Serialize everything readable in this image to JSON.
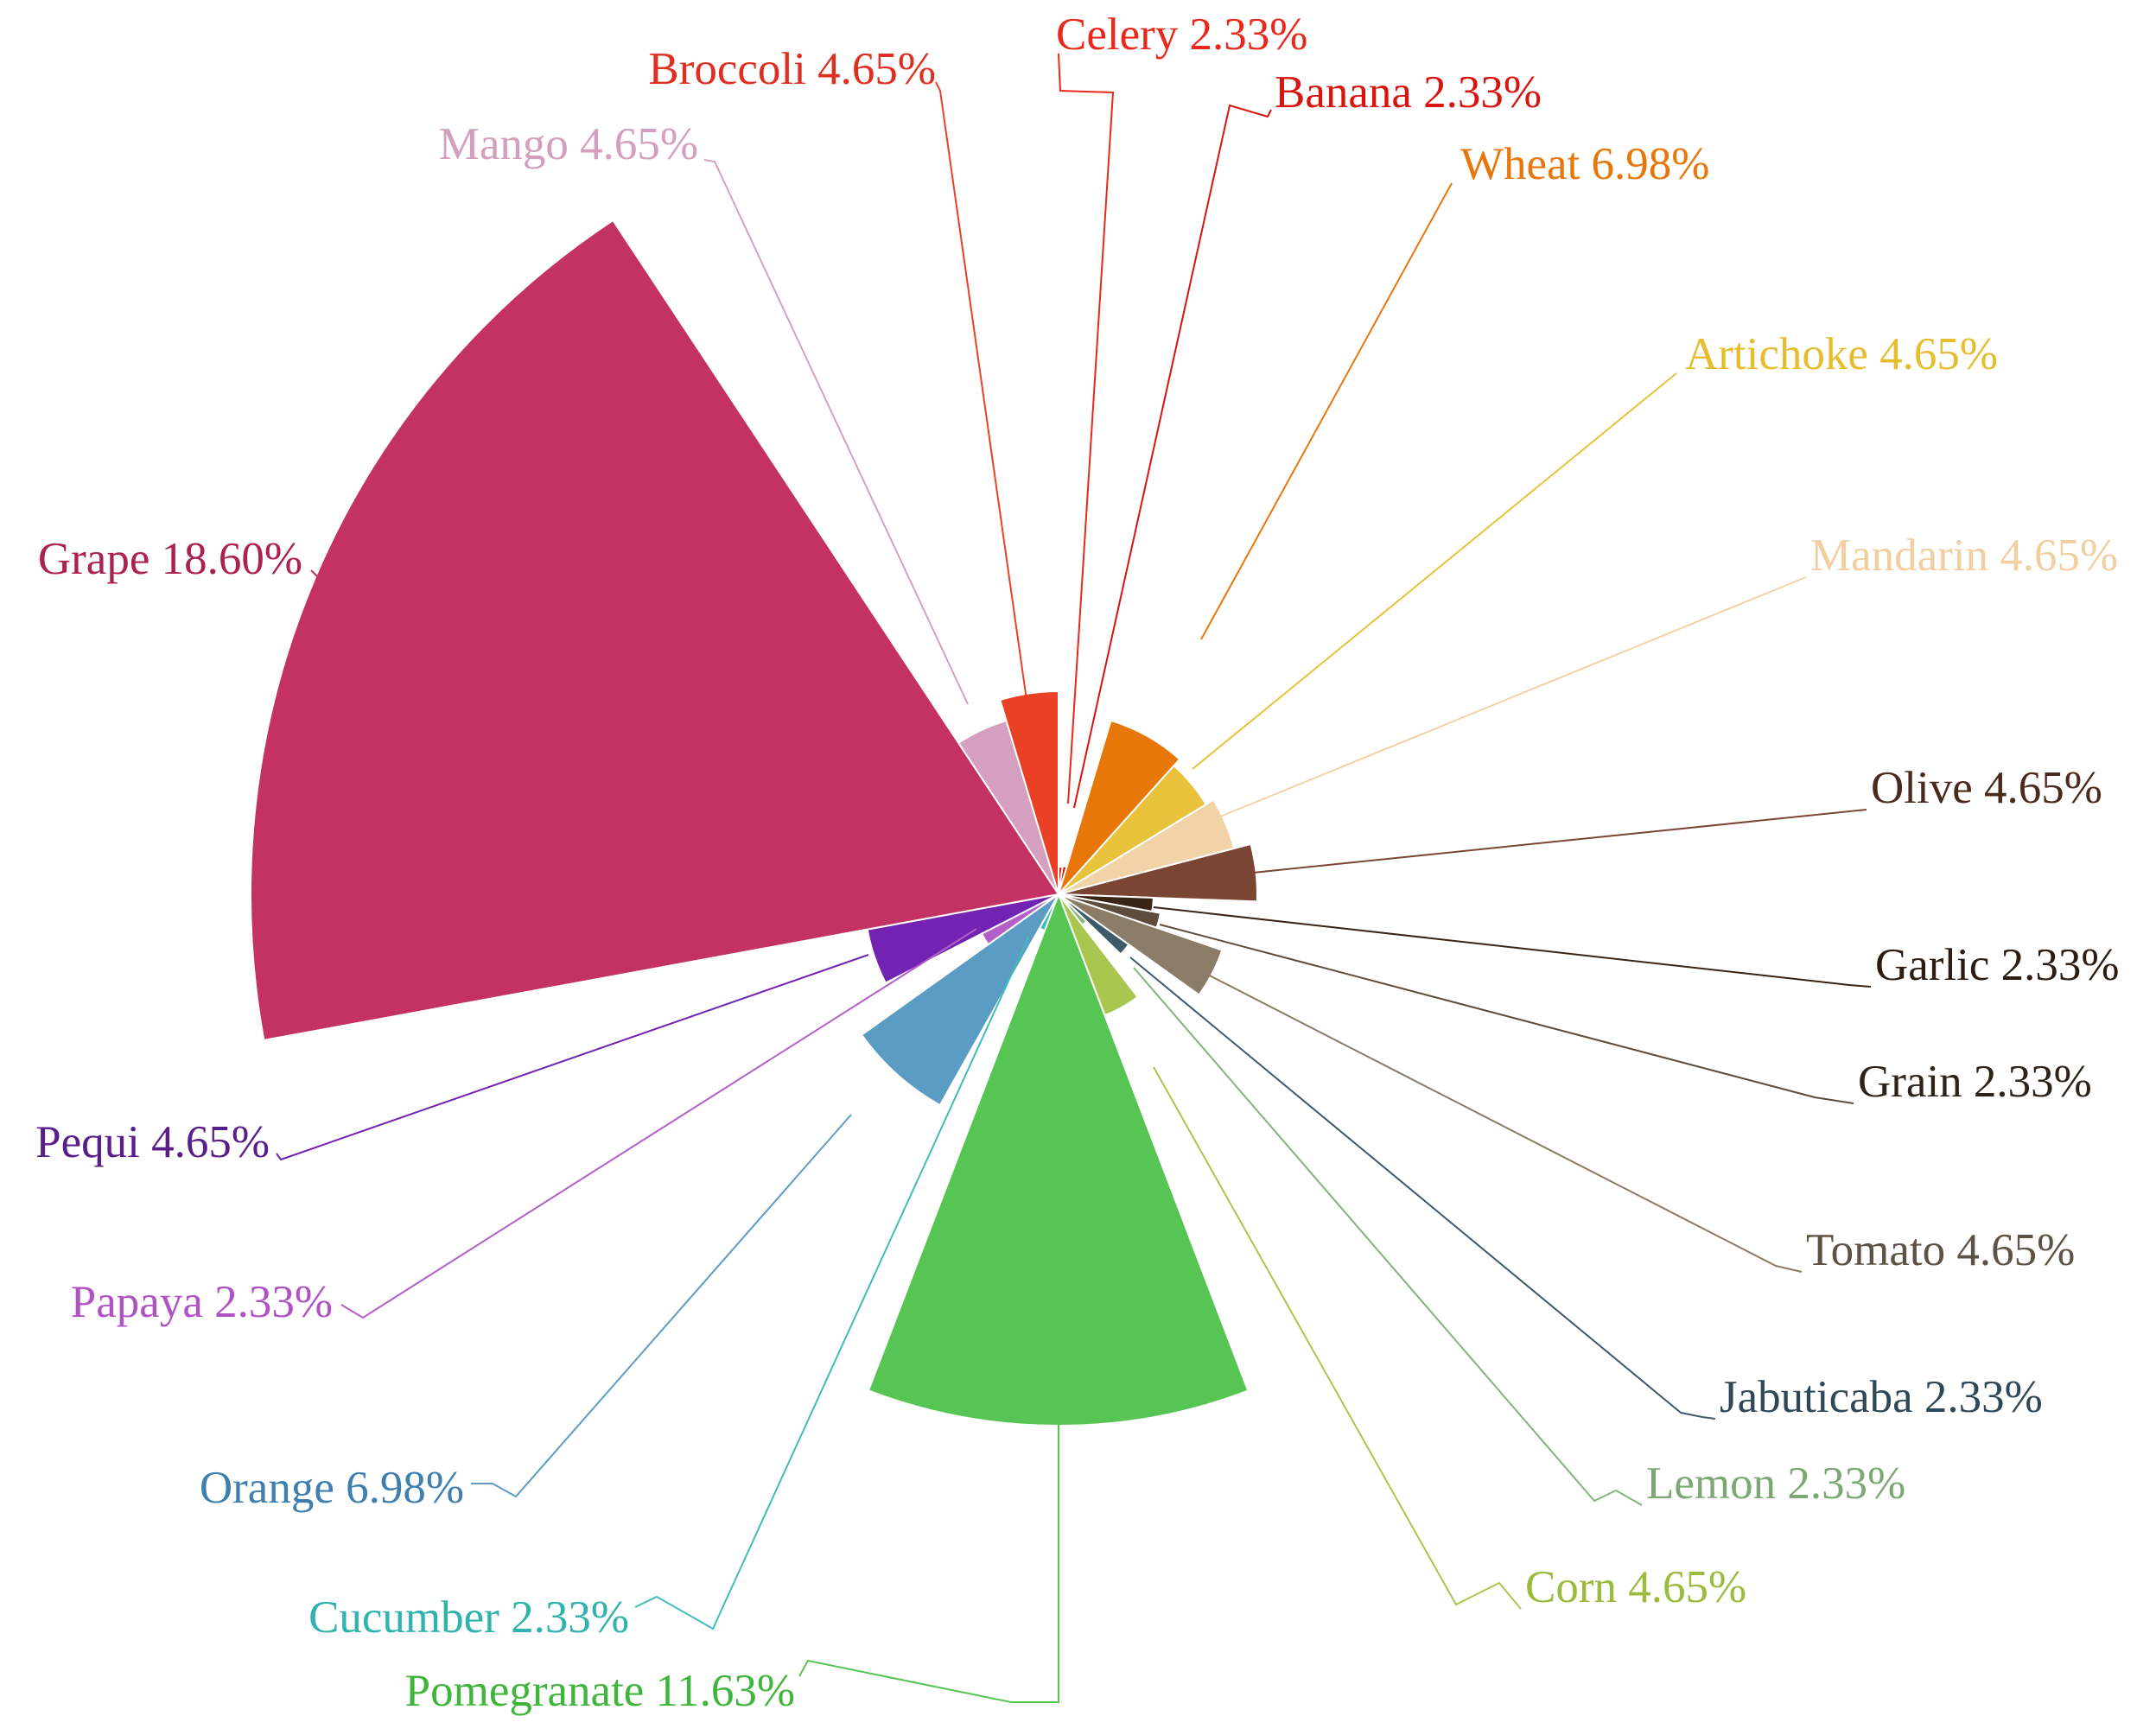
{
  "chart_data": {
    "type": "pie",
    "variant": "rose",
    "title": "",
    "slices": [
      {
        "name": "Celery",
        "percent": 2.33,
        "label": "Celery 2.33%",
        "color": "#e8281b"
      },
      {
        "name": "Banana",
        "percent": 2.33,
        "label": "Banana 2.33%",
        "color": "#d9140f"
      },
      {
        "name": "Wheat",
        "percent": 6.98,
        "label": "Wheat 6.98%",
        "color": "#e8770a"
      },
      {
        "name": "Artichoke",
        "percent": 4.65,
        "label": "Artichoke 4.65%",
        "color": "#e8c23b"
      },
      {
        "name": "Mandarin",
        "percent": 4.65,
        "label": "Mandarin 4.65%",
        "color": "#f2d3a8"
      },
      {
        "name": "Olive",
        "percent": 4.65,
        "label": "Olive 4.65%",
        "color": "#7b4534"
      },
      {
        "name": "Garlic",
        "percent": 2.33,
        "label": "Garlic 2.33%",
        "color": "#3a2416"
      },
      {
        "name": "Grain",
        "percent": 2.33,
        "label": "Grain 2.33%",
        "color": "#5d4d3c"
      },
      {
        "name": "Tomato",
        "percent": 4.65,
        "label": "Tomato 4.65%",
        "color": "#8a7c66"
      },
      {
        "name": "Jabuticaba",
        "percent": 2.33,
        "label": "Jabuticaba 2.33%",
        "color": "#3e5a6a"
      },
      {
        "name": "Lemon",
        "percent": 2.33,
        "label": "Lemon 2.33%",
        "color": "#84b37c"
      },
      {
        "name": "Corn",
        "percent": 4.65,
        "label": "Corn 4.65%",
        "color": "#a9c64e"
      },
      {
        "name": "Pomegranate",
        "percent": 11.63,
        "label": "Pomegranate 11.63%",
        "color": "#57c553"
      },
      {
        "name": "Cucumber",
        "percent": 2.33,
        "label": "Cucumber 2.33%",
        "color": "#3dbdb6"
      },
      {
        "name": "Orange",
        "percent": 6.98,
        "label": "Orange 6.98%",
        "color": "#5b9cc4"
      },
      {
        "name": "Papaya",
        "percent": 2.33,
        "label": "Papaya 2.33%",
        "color": "#b35fc7"
      },
      {
        "name": "Pequi",
        "percent": 4.65,
        "label": "Pequi 4.65%",
        "color": "#7223b2"
      },
      {
        "name": "Grape",
        "percent": 18.6,
        "label": "Grape 18.60%",
        "color": "#c43163"
      },
      {
        "name": "Mango",
        "percent": 4.65,
        "label": "Mango 4.65%",
        "color": "#d5a0bf"
      },
      {
        "name": "Broccoli",
        "percent": 4.65,
        "label": "Broccoli 4.65%",
        "color": "#ea4025"
      }
    ],
    "label_colors": {
      "Celery": "#e8281b",
      "Banana": "#d9140f",
      "Wheat": "#e8770a",
      "Artichoke": "#e5bd2f",
      "Mandarin": "#f2cfa0",
      "Olive": "#4a2a1c",
      "Garlic": "#2c1d12",
      "Grain": "#2c241a",
      "Tomato": "#5d5243",
      "Jabuticaba": "#2f4858",
      "Lemon": "#7ca873",
      "Corn": "#9cba3e",
      "Pomegranate": "#3fb63b",
      "Cucumber": "#2fb3ac",
      "Orange": "#3f7fb0",
      "Papaya": "#b052c4",
      "Pequi": "#5a1e8a",
      "Grape": "#ac2052",
      "Mango": "#d39fbd",
      "Broccoli": "#dd3020"
    }
  }
}
